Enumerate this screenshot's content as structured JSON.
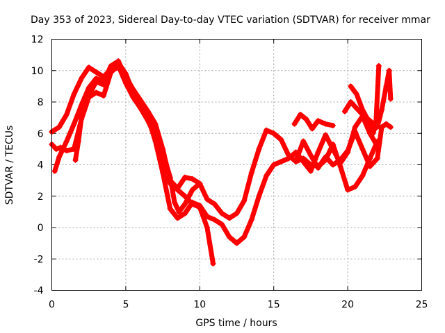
{
  "chart_data": {
    "type": "scatter",
    "title": "Day 353 of 2023, Sidereal Day-to-day VTEC variation (SDTVAR) for receiver mmar",
    "xlabel": "GPS time / hours",
    "ylabel": "SDTVAR / TECUs",
    "xlim": [
      0,
      25
    ],
    "ylim": [
      -4,
      12
    ],
    "xticks": [
      0,
      5,
      10,
      15,
      20,
      25
    ],
    "yticks": [
      -4,
      -2,
      0,
      2,
      4,
      6,
      8,
      10,
      12
    ],
    "grid": true,
    "marker": "+",
    "color": "#ff0000",
    "series": [
      {
        "x": [
          0.0,
          0.5,
          1.0,
          1.5,
          2.0,
          2.5,
          3.0,
          3.5,
          4.0,
          4.5,
          5.0,
          5.5,
          6.0,
          6.5,
          7.0,
          7.5,
          8.0,
          8.3,
          8.6,
          9.0,
          9.5,
          10.0,
          10.5,
          11.0,
          11.5,
          12.0,
          12.5,
          13.0,
          13.5,
          14.0,
          14.5,
          15.0,
          15.5,
          16.0,
          16.5,
          17.0,
          17.5,
          18.0,
          18.5,
          19.0,
          19.5,
          20.0,
          20.5,
          21.0,
          21.5,
          22.0
        ],
        "y": [
          6.1,
          6.4,
          7.2,
          8.5,
          9.5,
          10.2,
          9.9,
          9.6,
          10.1,
          10.5,
          9.8,
          8.6,
          7.8,
          7.2,
          6.2,
          4.8,
          3.2,
          1.6,
          1.0,
          1.5,
          2.4,
          2.8,
          1.8,
          1.5,
          0.9,
          0.6,
          0.9,
          1.7,
          3.5,
          5.0,
          6.2,
          6.0,
          5.6,
          4.6,
          4.2,
          4.4,
          4.0,
          3.9,
          4.3,
          5.3,
          3.9,
          2.4,
          2.6,
          3.3,
          4.4,
          5.5
        ]
      },
      {
        "x": [
          0.0,
          0.3,
          0.6,
          1.0,
          1.5,
          2.0,
          2.5,
          3.0,
          3.5,
          4.0,
          4.5,
          5.0,
          5.5,
          6.0,
          6.5,
          7.0,
          7.5,
          8.0,
          8.5,
          9.0,
          9.5,
          10.0,
          10.5,
          11.0,
          11.5,
          12.0,
          12.5,
          13.0,
          13.5,
          14.0,
          14.5,
          15.0,
          15.5,
          16.0,
          16.5,
          17.0,
          17.5,
          18.0,
          18.5,
          19.0,
          19.5,
          20.0,
          20.5,
          21.0,
          21.5,
          22.0
        ],
        "y": [
          5.3,
          5.0,
          5.1,
          4.9,
          5.0,
          6.9,
          8.3,
          8.6,
          8.4,
          9.9,
          10.3,
          9.2,
          8.3,
          7.6,
          7.0,
          5.5,
          3.5,
          1.2,
          0.6,
          0.9,
          1.6,
          1.4,
          0.7,
          0.5,
          0.2,
          -0.6,
          -1.0,
          -0.6,
          0.5,
          2.0,
          3.3,
          4.0,
          4.2,
          4.4,
          4.8,
          4.2,
          3.6,
          4.8,
          5.9,
          5.0,
          4.1,
          4.8,
          6.4,
          7.1,
          6.0,
          5.2
        ]
      },
      {
        "x": [
          0.2,
          0.5,
          1.0,
          1.5,
          2.0,
          2.5,
          3.0,
          3.5,
          4.0,
          4.5,
          5.0,
          5.5,
          6.0,
          6.5,
          7.0,
          7.5,
          8.0,
          8.5,
          9.0,
          9.5,
          10.0,
          10.5,
          10.9
        ],
        "y": [
          3.6,
          4.5,
          5.5,
          6.6,
          7.8,
          8.9,
          9.5,
          9.3,
          10.3,
          10.6,
          9.5,
          8.4,
          7.6,
          6.8,
          5.8,
          4.4,
          2.8,
          2.4,
          2.0,
          1.5,
          1.3,
          0.0,
          -2.3
        ]
      },
      {
        "x": [
          1.6,
          1.8,
          2.0,
          2.5,
          3.0,
          3.5,
          4.0,
          4.5,
          5.0,
          5.5,
          6.0,
          6.5,
          7.0,
          7.5,
          8.0,
          8.5,
          9.0,
          9.5,
          10.0
        ],
        "y": [
          4.3,
          5.5,
          7.0,
          8.4,
          9.3,
          9.1,
          10.0,
          10.2,
          9.6,
          8.8,
          8.1,
          7.4,
          6.6,
          5.0,
          3.0,
          2.5,
          3.2,
          3.1,
          2.8
        ]
      },
      {
        "x": [
          16.4,
          16.8,
          17.2,
          17.6,
          18.0,
          18.5,
          19.0
        ],
        "y": [
          6.6,
          7.2,
          6.9,
          6.3,
          6.8,
          6.6,
          6.5
        ]
      },
      {
        "x": [
          20.2,
          20.6,
          21.0,
          21.4,
          21.7,
          21.9,
          22.1
        ],
        "y": [
          9.0,
          8.5,
          7.5,
          6.8,
          6.0,
          6.5,
          10.3
        ]
      },
      {
        "x": [
          16.6,
          17.0,
          17.5,
          18.0,
          18.5,
          19.0,
          19.5,
          20.0,
          20.5,
          21.0,
          21.5,
          22.0,
          22.3,
          22.6,
          22.9
        ],
        "y": [
          4.5,
          5.5,
          4.6,
          3.8,
          4.5,
          4.0,
          4.3,
          4.9,
          6.1,
          5.0,
          3.9,
          4.4,
          6.4,
          6.6,
          6.4
        ]
      },
      {
        "x": [
          19.8,
          20.2,
          20.6,
          21.0,
          21.5,
          22.0,
          22.3,
          22.6,
          22.8,
          22.9
        ],
        "y": [
          7.4,
          8.0,
          7.6,
          7.2,
          6.8,
          6.4,
          7.5,
          9.0,
          10.0,
          8.2
        ]
      }
    ]
  }
}
